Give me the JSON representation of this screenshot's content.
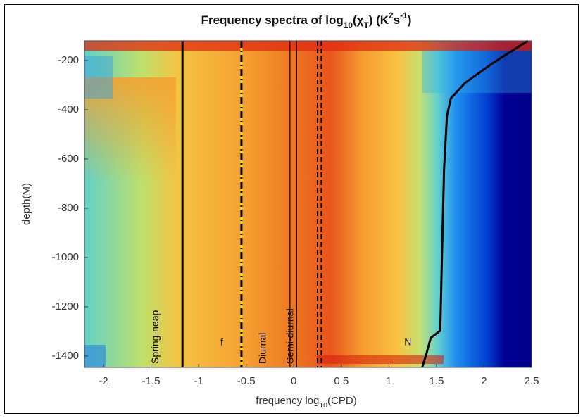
{
  "chart_data": {
    "type": "heatmap",
    "title_parts": [
      "Frequency spectra of log",
      "10",
      "(χ",
      "T",
      ") (K",
      "2",
      "s",
      "-1",
      ")"
    ],
    "xlabel_parts": [
      "frequency log",
      "10",
      "(CPD)"
    ],
    "ylabel": "depth(M)",
    "xlim": [
      -2.2,
      2.5
    ],
    "ylim": [
      -1446,
      -120
    ],
    "xticks": [
      -2,
      -1.5,
      -1,
      -0.5,
      0,
      0.5,
      1,
      1.5,
      2,
      2.5
    ],
    "yticks": [
      -1400,
      -1200,
      -1000,
      -800,
      -600,
      -400,
      -200
    ],
    "lines": [
      {
        "label": "Spring-neap",
        "x": -1.17,
        "style": "solid",
        "color": "#000000"
      },
      {
        "label": "f",
        "x": -0.55,
        "style": "dashdot",
        "color": "#000000"
      },
      {
        "label": "Diurnal",
        "x": -0.04,
        "style": "thin",
        "color": "#000000"
      },
      {
        "x": 0.03,
        "style": "thin",
        "color": "#000000"
      },
      {
        "label": "Semi-diurnal",
        "x": 0.25,
        "style": "dashed",
        "color": "#000000"
      },
      {
        "x": 0.29,
        "style": "dashed",
        "color": "#000000"
      }
    ],
    "curve": {
      "name": "N",
      "color": "#000000",
      "x": [
        2.46,
        2.09,
        1.8,
        1.65,
        1.61,
        1.58,
        1.56,
        1.54,
        1.44,
        1.39,
        1.35
      ],
      "y": [
        -120,
        -211,
        -291,
        -354,
        -426,
        -640,
        -954,
        -1297,
        -1326,
        -1397,
        -1446
      ]
    }
  }
}
